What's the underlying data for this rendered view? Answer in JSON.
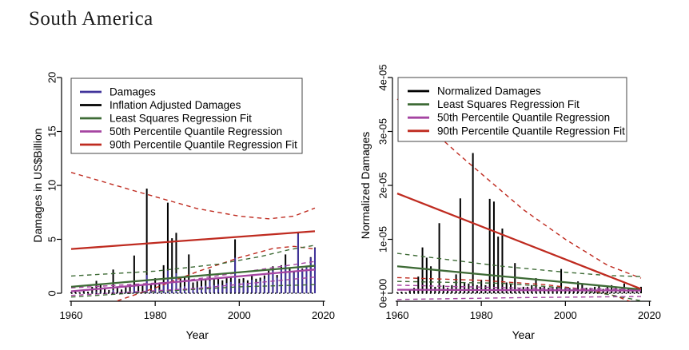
{
  "title": "South America",
  "colors": {
    "damages": "#41349b",
    "inflation": "#000000",
    "least_squares": "#3e6b36",
    "quantile50": "#a544a1",
    "quantile90": "#bf2b20"
  },
  "chart_data": [
    {
      "type": "bar",
      "title": "",
      "xlabel": "Year",
      "ylabel": "Damages in US$Billion",
      "xlim": [
        1960,
        2020
      ],
      "ylim": [
        0,
        20
      ],
      "grid": false,
      "legend_position": "top-left",
      "xticks": [
        1960,
        1980,
        2000,
        2020
      ],
      "yticks": [
        {
          "v": 0,
          "label": "0"
        },
        {
          "v": 5,
          "label": "5"
        },
        {
          "v": 10,
          "label": "10"
        },
        {
          "v": 15,
          "label": "15"
        },
        {
          "v": 20,
          "label": "20"
        }
      ],
      "value_scale": 1,
      "years": [
        1960,
        1961,
        1962,
        1963,
        1964,
        1965,
        1966,
        1967,
        1968,
        1969,
        1970,
        1971,
        1972,
        1973,
        1974,
        1975,
        1976,
        1977,
        1978,
        1979,
        1980,
        1981,
        1982,
        1983,
        1984,
        1985,
        1986,
        1987,
        1988,
        1989,
        1990,
        1991,
        1992,
        1993,
        1994,
        1995,
        1996,
        1997,
        1998,
        1999,
        2000,
        2001,
        2002,
        2003,
        2004,
        2005,
        2006,
        2007,
        2008,
        2009,
        2010,
        2011,
        2012,
        2013,
        2014,
        2015,
        2016,
        2017,
        2018
      ],
      "series": [
        {
          "name": "Inflation Adjusted Damages",
          "color": "inflation",
          "values": [
            0.1,
            0.15,
            0.1,
            0.25,
            0.15,
            0.6,
            1.15,
            0.85,
            0.55,
            0.3,
            2.2,
            0.5,
            0.35,
            0.55,
            0.8,
            3.5,
            0.7,
            0.85,
            9.7,
            0.9,
            1.4,
            1.0,
            2.6,
            8.4,
            5.1,
            5.6,
            1.4,
            1.5,
            3.6,
            1.0,
            1.1,
            1.25,
            1.3,
            2.2,
            1.3,
            1.4,
            1.2,
            1.45,
            1.55,
            5.0,
            1.35,
            1.4,
            1.2,
            1.7,
            1.35,
            1.45,
            1.65,
            2.1,
            2.5,
            1.7,
            2.6,
            3.6,
            2.35,
            2.05,
            5.55,
            2.3,
            2.45,
            3.35,
            4.25
          ]
        },
        {
          "name": "Damages",
          "color": "damages",
          "values": [
            0.02,
            0.03,
            0.02,
            0.05,
            0.03,
            0.1,
            0.15,
            0.12,
            0.08,
            0.05,
            0.3,
            0.08,
            0.06,
            0.1,
            0.18,
            0.6,
            0.15,
            0.2,
            1.7,
            0.25,
            0.45,
            0.35,
            0.9,
            2.1,
            1.45,
            1.85,
            0.55,
            0.65,
            1.25,
            0.45,
            0.55,
            0.65,
            0.7,
            1.15,
            0.75,
            0.85,
            0.75,
            0.95,
            1.05,
            3.3,
            0.95,
            1.0,
            0.9,
            1.25,
            1.05,
            1.15,
            1.35,
            1.7,
            2.1,
            1.45,
            2.3,
            2.6,
            2.1,
            1.9,
            5.5,
            2.2,
            2.4,
            3.3,
            4.2
          ]
        }
      ],
      "lines": [
        {
          "name": "90th-percentile-upper-band",
          "color": "quantile90",
          "style": "dashed",
          "points": [
            [
              1960,
              11.2
            ],
            [
              1975,
              9.5
            ],
            [
              1990,
              7.85
            ],
            [
              2000,
              7.15
            ],
            [
              2007,
              6.9
            ],
            [
              2013,
              7.15
            ],
            [
              2018,
              7.9
            ]
          ]
        },
        {
          "name": "90th-percentile-lower-band",
          "color": "quantile90",
          "style": "dashed",
          "points": [
            [
              1971,
              -0.7
            ],
            [
              1980,
              0.5
            ],
            [
              1990,
              2.0
            ],
            [
              2000,
              3.3
            ],
            [
              2008,
              4.15
            ],
            [
              2013,
              4.35
            ],
            [
              2018,
              4.1
            ]
          ]
        },
        {
          "name": "least-squares-upper-band",
          "color": "least_squares",
          "style": "dashed",
          "points": [
            [
              1960,
              1.6
            ],
            [
              1980,
              2.05
            ],
            [
              1995,
              2.7
            ],
            [
              2005,
              3.4
            ],
            [
              2012,
              4.05
            ],
            [
              2018,
              4.45
            ]
          ]
        },
        {
          "name": "least-squares-lower-band",
          "color": "least_squares",
          "style": "dashed",
          "points": [
            [
              1960,
              -0.35
            ],
            [
              1980,
              0.15
            ],
            [
              2000,
              0.6
            ],
            [
              2018,
              0.8
            ]
          ]
        },
        {
          "name": "50th-percentile-upper-band",
          "color": "quantile50",
          "style": "dashed",
          "points": [
            [
              1960,
              0.5
            ],
            [
              1985,
              1.05
            ],
            [
              2005,
              2.2
            ],
            [
              2018,
              2.95
            ]
          ]
        },
        {
          "name": "50th-percentile-lower-band",
          "color": "quantile50",
          "style": "dashed",
          "points": [
            [
              1960,
              -0.2
            ],
            [
              1990,
              0.45
            ],
            [
              2018,
              1.5
            ]
          ]
        },
        {
          "name": "zero-reference-dotted",
          "color": "inflation",
          "style": "dotted",
          "points": [
            [
              1960,
              0
            ],
            [
              2018,
              0
            ]
          ]
        },
        {
          "name": "Least Squares Regression Fit",
          "color": "least_squares",
          "style": "solid",
          "points": [
            [
              1960,
              0.6
            ],
            [
              2018,
              2.55
            ]
          ]
        },
        {
          "name": "50th Percentile Quantile Regression",
          "color": "quantile50",
          "style": "solid",
          "points": [
            [
              1960,
              0.18
            ],
            [
              2018,
              2.2
            ]
          ]
        },
        {
          "name": "90th Percentile Quantile Regression Fit",
          "color": "quantile90",
          "style": "solid",
          "points": [
            [
              1960,
              4.1
            ],
            [
              2018,
              5.75
            ]
          ]
        }
      ],
      "legend": [
        {
          "label": "Damages",
          "color": "damages"
        },
        {
          "label": "Inflation Adjusted Damages",
          "color": "inflation"
        },
        {
          "label": "Least Squares Regression Fit",
          "color": "least_squares"
        },
        {
          "label": "50th Percentile Quantile Regression",
          "color": "quantile50"
        },
        {
          "label": "90th Percentile Quantile Regression Fit",
          "color": "quantile90"
        }
      ]
    },
    {
      "type": "bar",
      "title": "",
      "xlabel": "Year",
      "ylabel": "Normalized Damages",
      "xlim": [
        1960,
        2020
      ],
      "ylim": [
        0,
        4e-05
      ],
      "grid": false,
      "legend_position": "top-left",
      "xticks": [
        1960,
        1980,
        2000,
        2020
      ],
      "yticks": [
        {
          "v": 0,
          "label": "0e+00"
        },
        {
          "v": 1e-05,
          "label": "1e-05"
        },
        {
          "v": 2e-05,
          "label": "2e-05"
        },
        {
          "v": 3e-05,
          "label": "3e-05"
        },
        {
          "v": 4e-05,
          "label": "4e-05"
        }
      ],
      "value_scale": 1e-06,
      "years": [
        1960,
        1961,
        1962,
        1963,
        1964,
        1965,
        1966,
        1967,
        1968,
        1969,
        1970,
        1971,
        1972,
        1973,
        1974,
        1975,
        1976,
        1977,
        1978,
        1979,
        1980,
        1981,
        1982,
        1983,
        1984,
        1985,
        1986,
        1987,
        1988,
        1989,
        1990,
        1991,
        1992,
        1993,
        1994,
        1995,
        1996,
        1997,
        1998,
        1999,
        2000,
        2001,
        2002,
        2003,
        2004,
        2005,
        2006,
        2007,
        2008,
        2009,
        2010,
        2011,
        2012,
        2013,
        2014,
        2015,
        2016,
        2017,
        2018
      ],
      "series": [
        {
          "name": "Normalized Damages",
          "color": "inflation",
          "values": [
            0.2,
            0.3,
            0.2,
            0.6,
            1.0,
            3.1,
            8.5,
            6.6,
            5.0,
            1.2,
            13.0,
            1.5,
            1.0,
            1.5,
            3.5,
            17.6,
            2.0,
            1.8,
            26.0,
            1.5,
            2.5,
            1.5,
            17.5,
            17.0,
            10.5,
            12.0,
            2.0,
            1.8,
            5.6,
            1.0,
            1.2,
            1.2,
            1.5,
            2.8,
            1.2,
            1.2,
            1.0,
            1.2,
            1.2,
            4.5,
            1.0,
            1.0,
            0.8,
            2.2,
            1.8,
            1.0,
            1.0,
            1.2,
            1.5,
            0.8,
            1.2,
            1.5,
            1.0,
            0.8,
            1.8,
            0.8,
            0.8,
            1.0,
            1.2
          ]
        }
      ],
      "lines": [
        {
          "name": "90th-percentile-upper-band",
          "color": "quantile90",
          "style": "dashed",
          "points": [
            [
              1960,
              36.0
            ],
            [
              1975,
              25.5
            ],
            [
              1990,
              15.5
            ],
            [
              2000,
              10.0
            ],
            [
              2010,
              5.2
            ],
            [
              2018,
              2.8
            ]
          ]
        },
        {
          "name": "90th-percentile-lower-band",
          "color": "quantile90",
          "style": "dashed",
          "points": [
            [
              1960,
              2.9
            ],
            [
              1980,
              2.4
            ],
            [
              1995,
              1.6
            ],
            [
              2005,
              0.7
            ],
            [
              2012,
              -0.5
            ],
            [
              2018,
              -2.3
            ]
          ]
        },
        {
          "name": "least-squares-upper-band",
          "color": "least_squares",
          "style": "dashed",
          "points": [
            [
              1960,
              7.4
            ],
            [
              1985,
              5.0
            ],
            [
              2000,
              3.9
            ],
            [
              2010,
              3.3
            ],
            [
              2018,
              3.1
            ]
          ]
        },
        {
          "name": "least-squares-lower-band",
          "color": "least_squares",
          "style": "dashed",
          "points": [
            [
              1960,
              2.2
            ],
            [
              1985,
              1.85
            ],
            [
              2000,
              1.0
            ],
            [
              2010,
              -0.2
            ],
            [
              2018,
              -1.4
            ]
          ]
        },
        {
          "name": "50th-percentile-upper-band",
          "color": "quantile50",
          "style": "dashed",
          "points": [
            [
              1960,
              1.5
            ],
            [
              1990,
              0.95
            ],
            [
              2018,
              0.75
            ]
          ]
        },
        {
          "name": "50th-percentile-lower-band",
          "color": "quantile50",
          "style": "dashed",
          "points": [
            [
              1960,
              -1.15
            ],
            [
              1990,
              -0.8
            ],
            [
              2018,
              -0.6
            ]
          ]
        },
        {
          "name": "zero-reference-dotted",
          "color": "inflation",
          "style": "dotted",
          "points": [
            [
              1960,
              0
            ],
            [
              2018,
              0
            ]
          ]
        },
        {
          "name": "Least Squares Regression Fit",
          "color": "least_squares",
          "style": "solid",
          "points": [
            [
              1960,
              5.0
            ],
            [
              2018,
              0.7
            ]
          ]
        },
        {
          "name": "50th Percentile Quantile Regression",
          "color": "quantile50",
          "style": "solid",
          "points": [
            [
              1960,
              0.65
            ],
            [
              2018,
              0.5
            ]
          ]
        },
        {
          "name": "90th Percentile Quantile Regression Fit",
          "color": "quantile90",
          "style": "solid",
          "points": [
            [
              1960,
              18.5
            ],
            [
              2018,
              0.8
            ]
          ]
        }
      ],
      "legend": [
        {
          "label": "Normalized Damages",
          "color": "inflation"
        },
        {
          "label": "Least Squares Regression Fit",
          "color": "least_squares"
        },
        {
          "label": "50th Percentile Quantile Regression",
          "color": "quantile50"
        },
        {
          "label": "90th Percentile Quantile Regression Fit",
          "color": "quantile90"
        }
      ]
    }
  ]
}
